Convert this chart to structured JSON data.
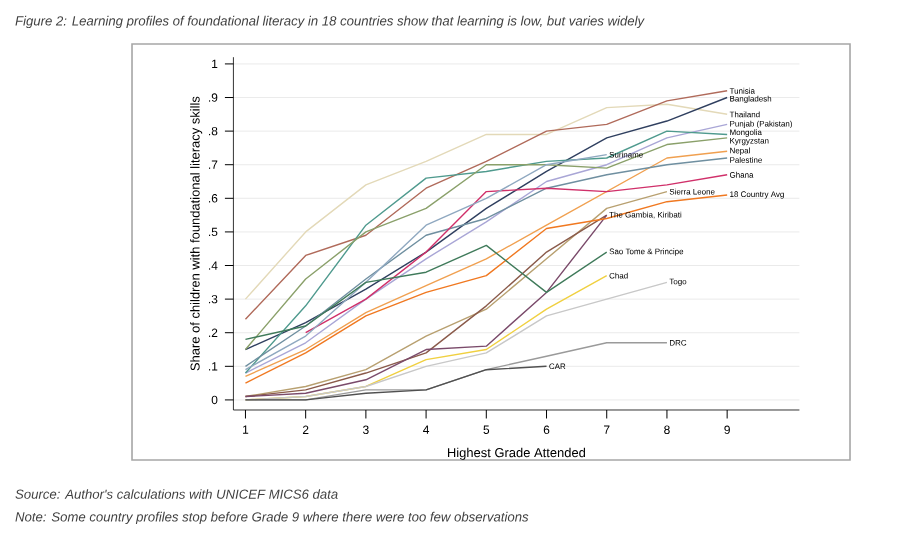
{
  "chart_data": {
    "type": "line",
    "title": "Figure 2: Learning profiles of foundational literacy in 18 countries show that learning is low, but varies widely",
    "xlabel": "Highest Grade Attended",
    "ylabel": "Share of children with foundational literacy skills",
    "x": [
      1,
      2,
      3,
      4,
      5,
      6,
      7,
      8,
      9
    ],
    "series": [
      {
        "color": "#e3d9b8",
        "values": [
          0.3,
          0.5,
          0.64,
          0.71,
          0.79,
          0.79,
          0.87,
          0.88,
          0.85
        ]
      },
      {
        "color": "#b06a5a",
        "values": [
          0.24,
          0.43,
          0.49,
          0.63,
          0.71,
          0.8,
          0.82,
          0.89,
          0.92
        ]
      },
      {
        "color": "#2f3f5f",
        "values": [
          0.15,
          0.23,
          0.33,
          0.44,
          0.57,
          0.68,
          0.78,
          0.83,
          0.9
        ]
      },
      {
        "color": "#a9a6d6",
        "values": [
          0.08,
          0.17,
          0.3,
          0.42,
          0.53,
          0.65,
          0.7,
          0.78,
          0.82
        ]
      },
      {
        "color": "#4f9a8e",
        "values": [
          0.08,
          0.28,
          0.52,
          0.66,
          0.68,
          0.71,
          0.72,
          0.8,
          0.79
        ]
      },
      {
        "color": "#8aa06a",
        "values": [
          0.15,
          0.36,
          0.5,
          0.57,
          0.7,
          0.7,
          0.69,
          0.76,
          0.78
        ]
      },
      {
        "color": "#f0a050",
        "values": [
          0.07,
          0.15,
          0.26,
          0.34,
          0.42,
          0.52,
          0.62,
          0.72,
          0.74
        ]
      },
      {
        "color": "#6f8fa0",
        "values": [
          0.1,
          0.22,
          0.36,
          0.49,
          0.54,
          0.63,
          0.67,
          0.7,
          0.72
        ]
      },
      {
        "color": "#d0306a",
        "values": [
          null,
          0.2,
          0.3,
          0.44,
          0.62,
          0.63,
          0.62,
          0.64,
          0.67
        ]
      },
      {
        "color": "#8fa8c0",
        "values": [
          0.09,
          0.19,
          0.35,
          0.52,
          0.6,
          0.7,
          0.73,
          null,
          null
        ]
      },
      {
        "color": "#b8a070",
        "values": [
          0.01,
          0.04,
          0.09,
          0.19,
          0.27,
          0.42,
          0.57,
          0.62,
          null
        ]
      },
      {
        "color": "#8a5a4a",
        "values": [
          0.01,
          0.03,
          0.08,
          0.14,
          0.28,
          0.44,
          0.55,
          null,
          null
        ]
      },
      {
        "color": "#7a4a6a",
        "values": [
          0.01,
          0.02,
          0.06,
          0.15,
          0.16,
          0.32,
          0.55,
          null,
          null
        ]
      },
      {
        "color": "#f07820",
        "values": [
          0.05,
          0.14,
          0.25,
          0.32,
          0.37,
          0.51,
          0.54,
          0.59,
          0.61
        ]
      },
      {
        "color": "#3f7a5a",
        "values": [
          0.18,
          0.22,
          0.35,
          0.38,
          0.46,
          0.32,
          0.44,
          null,
          null
        ]
      },
      {
        "color": "#f0d040",
        "values": [
          0.0,
          0.01,
          0.04,
          0.12,
          0.15,
          0.27,
          0.37,
          null,
          null
        ]
      },
      {
        "color": "#c8c8c8",
        "values": [
          0.0,
          0.01,
          0.04,
          0.1,
          0.14,
          0.25,
          0.3,
          0.35,
          null
        ]
      },
      {
        "color": "#9a9a9a",
        "values": [
          0.0,
          0.0,
          0.03,
          0.03,
          0.09,
          0.13,
          0.17,
          0.17,
          null
        ]
      },
      {
        "color": "#505050",
        "values": [
          0.0,
          0.0,
          0.02,
          0.03,
          0.09,
          0.1,
          null,
          null,
          null
        ]
      }
    ],
    "annotations": [
      {
        "text": "Tunisia",
        "x": 9,
        "y": 0.92
      },
      {
        "text": "Bangladesh",
        "x": 9,
        "y": 0.9
      },
      {
        "text": "Thailand",
        "x": 9,
        "y": 0.85
      },
      {
        "text": "Punjab (Pakistan)",
        "x": 9,
        "y": 0.82
      },
      {
        "text": "Mongolia",
        "x": 9,
        "y": 0.8
      },
      {
        "text": "Kyrgyzstan",
        "x": 9,
        "y": 0.78
      },
      {
        "text": "Nepal",
        "x": 9,
        "y": 0.74
      },
      {
        "text": "Palestine",
        "x": 9,
        "y": 0.72
      },
      {
        "text": "Ghana",
        "x": 9,
        "y": 0.67
      },
      {
        "text": "18 Country Avg",
        "x": 9,
        "y": 0.61
      },
      {
        "text": "Suriname",
        "x": 7,
        "y": 0.73
      },
      {
        "text": "Sierra Leone",
        "x": 8,
        "y": 0.62
      },
      {
        "text": "The Gambia, Kiribati",
        "x": 7,
        "y": 0.55
      },
      {
        "text": "Sao Tome & Principe",
        "x": 7,
        "y": 0.44
      },
      {
        "text": "Chad",
        "x": 7,
        "y": 0.37
      },
      {
        "text": "Togo",
        "x": 8,
        "y": 0.35
      },
      {
        "text": "DRC",
        "x": 8,
        "y": 0.17
      },
      {
        "text": "CAR",
        "x": 6,
        "y": 0.1
      },
      "Source: Author's calculations with UNICEF MICS6 data",
      "Note: Some country profiles stop before Grade 9 where there were too few observations"
    ],
    "xlim": [
      0.8,
      10.2
    ],
    "ylim": [
      -0.03,
      1.02
    ],
    "xticks": [
      1,
      2,
      3,
      4,
      5,
      6,
      7,
      8,
      9
    ],
    "yticks": [
      0,
      {
        "value": 0.1,
        "label": ".1"
      },
      {
        "value": 0.2,
        "label": ".2"
      },
      {
        "value": 0.3,
        "label": ".3"
      },
      {
        "value": 0.4,
        "label": ".4"
      },
      {
        "value": 0.5,
        "label": ".5"
      },
      {
        "value": 0.6,
        "label": ".6"
      },
      {
        "value": 0.7,
        "label": ".7"
      },
      {
        "value": 0.8,
        "label": ".8"
      },
      {
        "value": 0.9,
        "label": ".9"
      },
      1
    ],
    "grid": "y",
    "marker": "none",
    "line_style": "solid"
  }
}
